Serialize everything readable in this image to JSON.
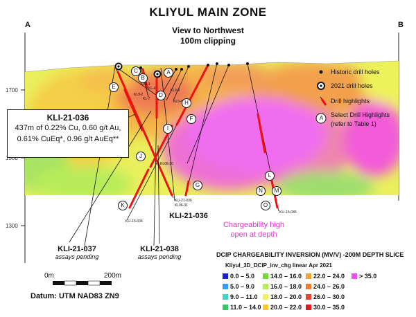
{
  "title": "KLIYUL MAIN ZONE",
  "corner_left": "A",
  "corner_right": "B",
  "view_line1": "View to Northwest",
  "view_line2": "100m clipping",
  "elevation_labels": [
    "1700",
    "1500",
    "1300"
  ],
  "callout": {
    "hole": "KLI-21-036",
    "line1": "437m of 0.22% Cu, 0.60 g/t Au,",
    "line2": "0.61% CuEq*, 0.96 g/t AuEq**"
  },
  "hole_labels": {
    "kli037_title": "KLI-21-037",
    "kli037_sub": "assays pending",
    "kli038_title": "KLI-21-038",
    "kli038_sub": "assays pending",
    "kli036_title": "KLI-21-036"
  },
  "small_labels": [
    "KL9-3",
    "KL-4",
    "KL-7",
    "KL9-2",
    "KL9-3",
    "KL9-4",
    "KL06-30",
    "KLI-21-036",
    "KL06-31",
    "KLI-15-034",
    "KLI-15-035"
  ],
  "highlight_letters": [
    "A",
    "B",
    "C",
    "D",
    "E",
    "F",
    "G",
    "H",
    "I",
    "J",
    "K",
    "L",
    "M",
    "N",
    "O"
  ],
  "map_legend": {
    "historic": "Historic drill holes",
    "new2021": "2021 drill holes",
    "highlights": "Drill highlights",
    "select1": "Select Drill Highlights",
    "select2": "(refer to Table 1)",
    "select_letter": "A"
  },
  "chargeability_note": [
    "Chargeability high",
    "open at depth"
  ],
  "color_legend": {
    "title": "DCIP CHARGEABILITY INVERSION (MV/V) -200M DEPTH SLICE",
    "subtitle": "Kliyul_3D_DCIP_inv_chg linear Apr 2021",
    "bins": [
      {
        "label": "0.0 – 5.0",
        "color": "#1f1fd9"
      },
      {
        "label": "5.0 – 9.0",
        "color": "#3a9bff"
      },
      {
        "label": "9.0 – 11.0",
        "color": "#3fd6c4"
      },
      {
        "label": "11.0 – 14.0",
        "color": "#38c46a"
      },
      {
        "label": "14.0 – 16.0",
        "color": "#6fdc3a"
      },
      {
        "label": "16.0 – 18.0",
        "color": "#b8ee55"
      },
      {
        "label": "18.0 – 20.0",
        "color": "#eef25a"
      },
      {
        "label": "20.0 – 22.0",
        "color": "#f7c83a"
      },
      {
        "label": "22.0 – 24.0",
        "color": "#f4a236"
      },
      {
        "label": "24.0 – 26.0",
        "color": "#f07a2e"
      },
      {
        "label": "26.0 – 30.0",
        "color": "#e8462a"
      },
      {
        "label": "30.0 – 35.0",
        "color": "#d81e1e"
      },
      {
        "label": "> 35.0",
        "color": "#f04cf0"
      }
    ]
  },
  "scale_bar": {
    "left": "0m",
    "right": "200m"
  },
  "datum": "Datum: UTM NAD83 ZN9"
}
